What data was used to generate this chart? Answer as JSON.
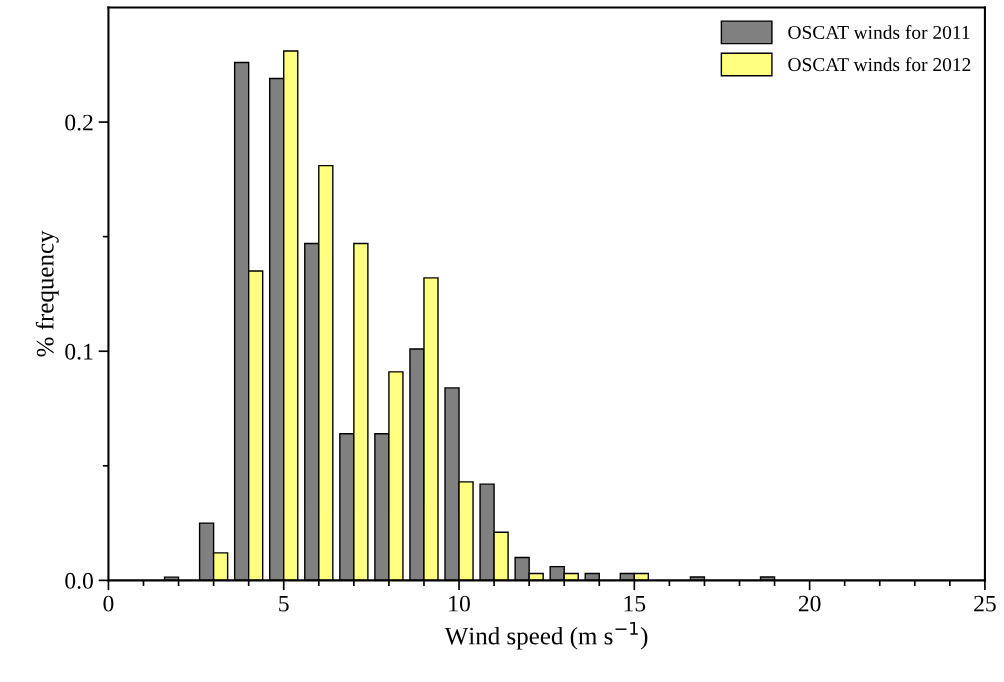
{
  "chart_data": {
    "type": "bar",
    "xlabel": "Wind speed (m s$^{−1}$)",
    "ylabel": "% frequency",
    "x": [
      2,
      3,
      4,
      5,
      6,
      7,
      8,
      9,
      10,
      11,
      12,
      13,
      14,
      15,
      16,
      17,
      18,
      19
    ],
    "series": [
      {
        "name": "OSCAT winds for 2011",
        "color": "#808080",
        "values": [
          0.0014,
          0.025,
          0.226,
          0.219,
          0.147,
          0.064,
          0.064,
          0.101,
          0.084,
          0.042,
          0.01,
          0.006,
          0.003,
          0.003,
          null,
          0.0015,
          null,
          0.0015
        ]
      },
      {
        "name": "OSCAT winds for 2012",
        "color": "#ffff80",
        "values": [
          null,
          0.012,
          0.135,
          0.231,
          0.181,
          0.147,
          0.091,
          0.132,
          0.043,
          0.021,
          0.003,
          0.003,
          null,
          0.003,
          null,
          null,
          null,
          null
        ]
      }
    ],
    "xlim": [
      0,
      25
    ],
    "xticks": [
      0,
      {
        "value": 1,
        "label": null
      },
      {
        "value": 2,
        "label": null
      },
      {
        "value": 3,
        "label": null
      },
      {
        "value": 4,
        "label": null
      },
      5,
      {
        "value": 6,
        "label": null
      },
      {
        "value": 7,
        "label": null
      },
      {
        "value": 8,
        "label": null
      },
      {
        "value": 9,
        "label": null
      },
      10,
      {
        "value": 11,
        "label": null
      },
      {
        "value": 12,
        "label": null
      },
      {
        "value": 13,
        "label": null
      },
      {
        "value": 14,
        "label": null
      },
      15,
      {
        "value": 16,
        "label": null
      },
      {
        "value": 17,
        "label": null
      },
      {
        "value": 18,
        "label": null
      },
      {
        "value": 19,
        "label": null
      },
      20,
      {
        "value": 21,
        "label": null
      },
      {
        "value": 22,
        "label": null
      },
      {
        "value": 23,
        "label": null
      },
      {
        "value": 24,
        "label": null
      },
      25
    ],
    "ylim": [
      0,
      0.25
    ],
    "yticks": [
      {
        "value": 0,
        "label": "0.0"
      },
      {
        "value": 0.05,
        "label": null
      },
      {
        "value": 0.1,
        "label": "0.1"
      },
      {
        "value": 0.15,
        "label": null
      },
      {
        "value": 0.2,
        "label": "0.2"
      }
    ],
    "legend": "top right",
    "grid": false
  }
}
